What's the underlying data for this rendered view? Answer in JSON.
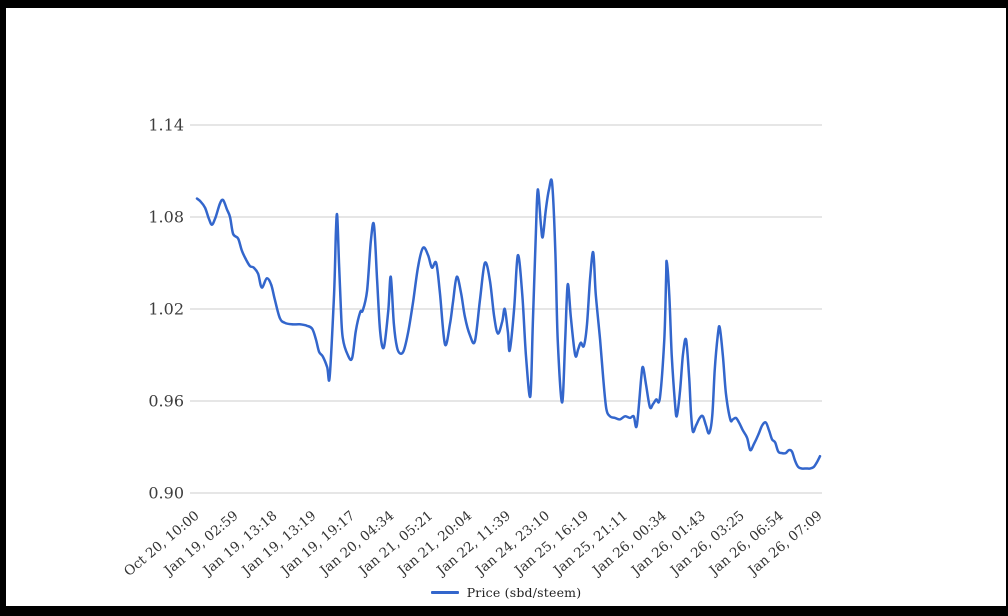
{
  "style": {
    "frame_color": "#000000",
    "background": "#ffffff",
    "gridline_color": "#cccccc",
    "y_label_color": "#3d3d3d",
    "x_label_color": "#333333",
    "legend_text_color": "#222222",
    "series_color": "#3366cc"
  },
  "chart_data": {
    "type": "line",
    "title": "",
    "xlabel": "",
    "ylabel": "",
    "ylim": [
      0.9,
      1.14
    ],
    "y_ticks": [
      1.14,
      1.08,
      1.02,
      0.96,
      0.9
    ],
    "grid": "horizontal-only",
    "legend": {
      "position": "bottom",
      "entries": [
        "Price (sbd/steem)"
      ]
    },
    "x_tick_labels": [
      "Oct 20, 10:00",
      "Jan 19, 02:59",
      "Jan 19, 13:18",
      "Jan 19, 13:19",
      "Jan 19, 19:17",
      "Jan 20, 04:34",
      "Jan 21, 05:21",
      "Jan 21, 20:04",
      "Jan 22, 11:39",
      "Jan 24, 23:10",
      "Jan 25, 16:19",
      "Jan 25, 21:11",
      "Jan 26, 00:34",
      "Jan 26, 01:43",
      "Jan 26, 03:25",
      "Jan 26, 06:54",
      "Jan 26, 07:09"
    ],
    "x_label_rotation_deg": -40,
    "series": [
      {
        "name": "Price (sbd/steem)",
        "color": "#3366cc",
        "stroke_width": 2.5,
        "points": [
          [
            0.0,
            1.092
          ],
          [
            0.006,
            1.09
          ],
          [
            0.013,
            1.086
          ],
          [
            0.019,
            1.079
          ],
          [
            0.024,
            1.075
          ],
          [
            0.03,
            1.08
          ],
          [
            0.037,
            1.089
          ],
          [
            0.042,
            1.091
          ],
          [
            0.048,
            1.085
          ],
          [
            0.053,
            1.08
          ],
          [
            0.058,
            1.069
          ],
          [
            0.066,
            1.066
          ],
          [
            0.072,
            1.058
          ],
          [
            0.079,
            1.052
          ],
          [
            0.085,
            1.048
          ],
          [
            0.091,
            1.047
          ],
          [
            0.098,
            1.043
          ],
          [
            0.104,
            1.034
          ],
          [
            0.112,
            1.04
          ],
          [
            0.119,
            1.036
          ],
          [
            0.125,
            1.026
          ],
          [
            0.133,
            1.014
          ],
          [
            0.141,
            1.011
          ],
          [
            0.152,
            1.01
          ],
          [
            0.165,
            1.01
          ],
          [
            0.177,
            1.009
          ],
          [
            0.185,
            1.007
          ],
          [
            0.191,
            1.0
          ],
          [
            0.196,
            0.992
          ],
          [
            0.202,
            0.989
          ],
          [
            0.209,
            0.982
          ],
          [
            0.213,
            0.976
          ],
          [
            0.22,
            1.03
          ],
          [
            0.223,
            1.07
          ],
          [
            0.225,
            1.081
          ],
          [
            0.228,
            1.05
          ],
          [
            0.231,
            1.02
          ],
          [
            0.234,
            1.001
          ],
          [
            0.242,
            0.99
          ],
          [
            0.249,
            0.988
          ],
          [
            0.255,
            1.006
          ],
          [
            0.262,
            1.018
          ],
          [
            0.266,
            1.019
          ],
          [
            0.273,
            1.032
          ],
          [
            0.279,
            1.064
          ],
          [
            0.284,
            1.075
          ],
          [
            0.289,
            1.04
          ],
          [
            0.294,
            1.005
          ],
          [
            0.3,
            0.995
          ],
          [
            0.307,
            1.019
          ],
          [
            0.311,
            1.041
          ],
          [
            0.316,
            1.01
          ],
          [
            0.321,
            0.995
          ],
          [
            0.326,
            0.991
          ],
          [
            0.332,
            0.993
          ],
          [
            0.339,
            1.005
          ],
          [
            0.347,
            1.025
          ],
          [
            0.355,
            1.048
          ],
          [
            0.363,
            1.06
          ],
          [
            0.371,
            1.055
          ],
          [
            0.377,
            1.047
          ],
          [
            0.384,
            1.05
          ],
          [
            0.39,
            1.03
          ],
          [
            0.398,
            0.997
          ],
          [
            0.406,
            1.01
          ],
          [
            0.411,
            1.025
          ],
          [
            0.417,
            1.041
          ],
          [
            0.424,
            1.03
          ],
          [
            0.43,
            1.015
          ],
          [
            0.438,
            1.003
          ],
          [
            0.446,
            0.999
          ],
          [
            0.454,
            1.025
          ],
          [
            0.462,
            1.05
          ],
          [
            0.47,
            1.039
          ],
          [
            0.477,
            1.015
          ],
          [
            0.483,
            1.004
          ],
          [
            0.49,
            1.012
          ],
          [
            0.494,
            1.02
          ],
          [
            0.499,
            1.005
          ],
          [
            0.502,
            0.993
          ],
          [
            0.509,
            1.02
          ],
          [
            0.515,
            1.055
          ],
          [
            0.522,
            1.03
          ],
          [
            0.528,
            0.99
          ],
          [
            0.535,
            0.963
          ],
          [
            0.539,
            1.01
          ],
          [
            0.544,
            1.07
          ],
          [
            0.547,
            1.098
          ],
          [
            0.552,
            1.075
          ],
          [
            0.555,
            1.067
          ],
          [
            0.56,
            1.085
          ],
          [
            0.565,
            1.098
          ],
          [
            0.57,
            1.102
          ],
          [
            0.575,
            1.06
          ],
          [
            0.579,
            1.0
          ],
          [
            0.586,
            0.959
          ],
          [
            0.591,
            1.0
          ],
          [
            0.595,
            1.036
          ],
          [
            0.6,
            1.015
          ],
          [
            0.607,
            0.99
          ],
          [
            0.612,
            0.994
          ],
          [
            0.616,
            0.998
          ],
          [
            0.621,
            0.996
          ],
          [
            0.626,
            1.01
          ],
          [
            0.631,
            1.04
          ],
          [
            0.636,
            1.057
          ],
          [
            0.64,
            1.03
          ],
          [
            0.647,
            1.0
          ],
          [
            0.652,
            0.975
          ],
          [
            0.657,
            0.955
          ],
          [
            0.663,
            0.95
          ],
          [
            0.671,
            0.949
          ],
          [
            0.679,
            0.948
          ],
          [
            0.687,
            0.95
          ],
          [
            0.695,
            0.949
          ],
          [
            0.701,
            0.95
          ],
          [
            0.706,
            0.944
          ],
          [
            0.713,
            0.975
          ],
          [
            0.716,
            0.982
          ],
          [
            0.721,
            0.97
          ],
          [
            0.727,
            0.956
          ],
          [
            0.732,
            0.958
          ],
          [
            0.737,
            0.961
          ],
          [
            0.743,
            0.962
          ],
          [
            0.75,
            1.0
          ],
          [
            0.753,
            1.04
          ],
          [
            0.754,
            1.051
          ],
          [
            0.758,
            1.03
          ],
          [
            0.762,
            0.99
          ],
          [
            0.767,
            0.96
          ],
          [
            0.77,
            0.95
          ],
          [
            0.775,
            0.965
          ],
          [
            0.78,
            0.99
          ],
          [
            0.785,
            1.0
          ],
          [
            0.79,
            0.975
          ],
          [
            0.793,
            0.952
          ],
          [
            0.796,
            0.94
          ],
          [
            0.801,
            0.944
          ],
          [
            0.807,
            0.949
          ],
          [
            0.812,
            0.95
          ],
          [
            0.817,
            0.944
          ],
          [
            0.822,
            0.939
          ],
          [
            0.827,
            0.95
          ],
          [
            0.831,
            0.98
          ],
          [
            0.836,
            1.003
          ],
          [
            0.839,
            1.008
          ],
          [
            0.844,
            0.99
          ],
          [
            0.849,
            0.965
          ],
          [
            0.856,
            0.948
          ],
          [
            0.86,
            0.948
          ],
          [
            0.865,
            0.949
          ],
          [
            0.87,
            0.946
          ],
          [
            0.876,
            0.941
          ],
          [
            0.883,
            0.936
          ],
          [
            0.888,
            0.928
          ],
          [
            0.894,
            0.932
          ],
          [
            0.901,
            0.938
          ],
          [
            0.907,
            0.944
          ],
          [
            0.913,
            0.946
          ],
          [
            0.918,
            0.941
          ],
          [
            0.923,
            0.935
          ],
          [
            0.928,
            0.933
          ],
          [
            0.933,
            0.927
          ],
          [
            0.939,
            0.926
          ],
          [
            0.945,
            0.926
          ],
          [
            0.95,
            0.928
          ],
          [
            0.955,
            0.927
          ],
          [
            0.96,
            0.921
          ],
          [
            0.965,
            0.917
          ],
          [
            0.971,
            0.916
          ],
          [
            0.978,
            0.916
          ],
          [
            0.984,
            0.916
          ],
          [
            0.99,
            0.917
          ],
          [
            0.995,
            0.92
          ],
          [
            1.0,
            0.924
          ]
        ]
      }
    ]
  }
}
